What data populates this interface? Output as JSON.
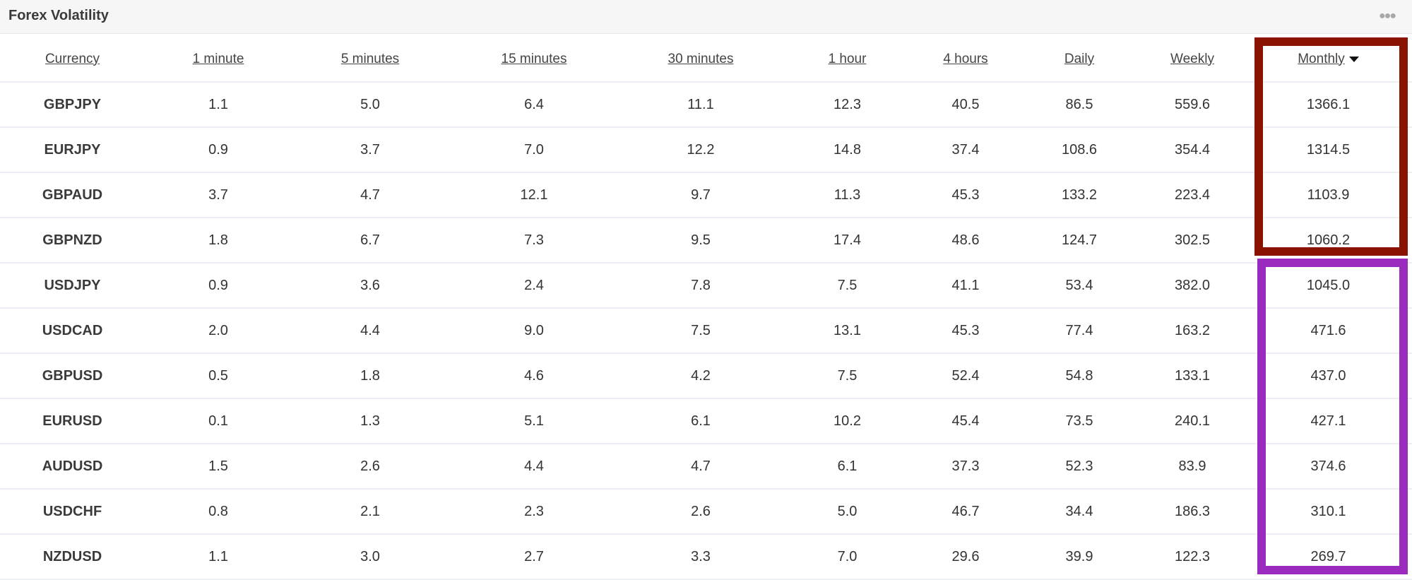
{
  "panel": {
    "title": "Forex Volatility",
    "menu_icon": "more-horizontal-icon"
  },
  "table": {
    "columns": [
      "Currency",
      "1 minute",
      "5 minutes",
      "15 minutes",
      "30 minutes",
      "1 hour",
      "4 hours",
      "Daily",
      "Weekly",
      "Monthly"
    ],
    "sort": {
      "column": "Monthly",
      "direction": "descending"
    },
    "rows": [
      [
        "GBPJPY",
        "1.1",
        "5.0",
        "6.4",
        "11.1",
        "12.3",
        "40.5",
        "86.5",
        "559.6",
        "1366.1"
      ],
      [
        "EURJPY",
        "0.9",
        "3.7",
        "7.0",
        "12.2",
        "14.8",
        "37.4",
        "108.6",
        "354.4",
        "1314.5"
      ],
      [
        "GBPAUD",
        "3.7",
        "4.7",
        "12.1",
        "9.7",
        "11.3",
        "45.3",
        "133.2",
        "223.4",
        "1103.9"
      ],
      [
        "GBPNZD",
        "1.8",
        "6.7",
        "7.3",
        "9.5",
        "17.4",
        "48.6",
        "124.7",
        "302.5",
        "1060.2"
      ],
      [
        "USDJPY",
        "0.9",
        "3.6",
        "2.4",
        "7.8",
        "7.5",
        "41.1",
        "53.4",
        "382.0",
        "1045.0"
      ],
      [
        "USDCAD",
        "2.0",
        "4.4",
        "9.0",
        "7.5",
        "13.1",
        "45.3",
        "77.4",
        "163.2",
        "471.6"
      ],
      [
        "GBPUSD",
        "0.5",
        "1.8",
        "4.6",
        "4.2",
        "7.5",
        "52.4",
        "54.8",
        "133.1",
        "437.0"
      ],
      [
        "EURUSD",
        "0.1",
        "1.3",
        "5.1",
        "6.1",
        "10.2",
        "45.4",
        "73.5",
        "240.1",
        "427.1"
      ],
      [
        "AUDUSD",
        "1.5",
        "2.6",
        "4.4",
        "4.7",
        "6.1",
        "37.3",
        "52.3",
        "83.9",
        "374.6"
      ],
      [
        "USDCHF",
        "0.8",
        "2.1",
        "2.3",
        "2.6",
        "5.0",
        "46.7",
        "34.4",
        "186.3",
        "310.1"
      ],
      [
        "NZDUSD",
        "1.1",
        "3.0",
        "2.7",
        "3.3",
        "7.0",
        "29.6",
        "39.9",
        "122.3",
        "269.7"
      ]
    ]
  },
  "highlights": {
    "top_group_color": "#8a1200",
    "bottom_group_color": "#9b2bbf"
  }
}
